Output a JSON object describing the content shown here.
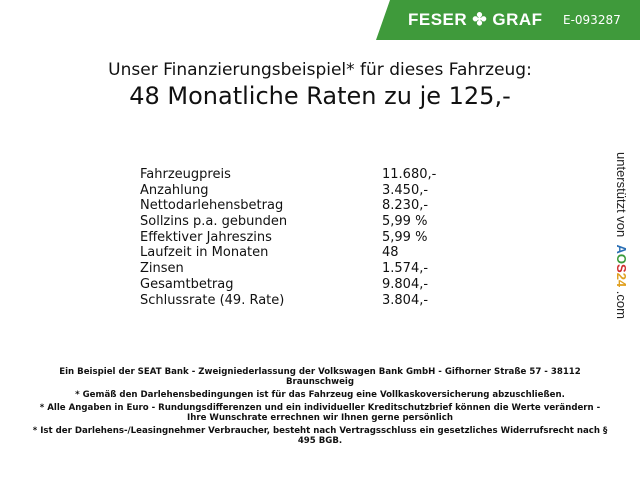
{
  "header": {
    "brand": "FESER",
    "brand2": "GRAF",
    "logo_icon": "clover-icon",
    "code": "E-093287",
    "color": "#3f9a3b"
  },
  "title": {
    "line1": "Unser Finanzierungsbeispiel* für dieses Fahrzeug:",
    "line2": "48 Monatliche Raten zu je 125,-"
  },
  "table": [
    {
      "label": "Fahrzeugpreis",
      "value": "11.680,-"
    },
    {
      "label": "Anzahlung",
      "value": "3.450,-"
    },
    {
      "label": "Nettodarlehensbetrag",
      "value": "8.230,-"
    },
    {
      "label": "Sollzins p.a. gebunden",
      "value": "5,99 %"
    },
    {
      "label": "Effektiver Jahreszins",
      "value": "5,99 %"
    },
    {
      "label": "Laufzeit in Monaten",
      "value": "48"
    },
    {
      "label": "Zinsen",
      "value": "1.574,-"
    },
    {
      "label": "Gesamtbetrag",
      "value": "9.804,-"
    },
    {
      "label": "Schlussrate (49. Rate)",
      "value": "3.804,-"
    }
  ],
  "side": {
    "prefix": "unterstützt von",
    "a": "A",
    "o": "O",
    "s": "S",
    "n24": "24",
    ".com": ".com",
    "dotcom": ".com"
  },
  "footer": [
    "Ein Beispiel der SEAT Bank - Zweigniederlassung der Volkswagen Bank GmbH - Gifhorner Straße 57 - 38112 Braunschweig",
    "* Gemäß den Darlehensbedingungen ist für das Fahrzeug eine Vollkaskoversicherung abzuschließen.",
    "* Alle Angaben in Euro - Rundungsdifferenzen und ein individueller Kreditschutzbrief können die Werte verändern - Ihre Wunschrate errechnen wir Ihnen gerne persönlich",
    "* Ist der Darlehens-/Leasingnehmer Verbraucher, besteht nach Vertragsschluss ein gesetzliches Widerrufsrecht nach § 495 BGB."
  ]
}
